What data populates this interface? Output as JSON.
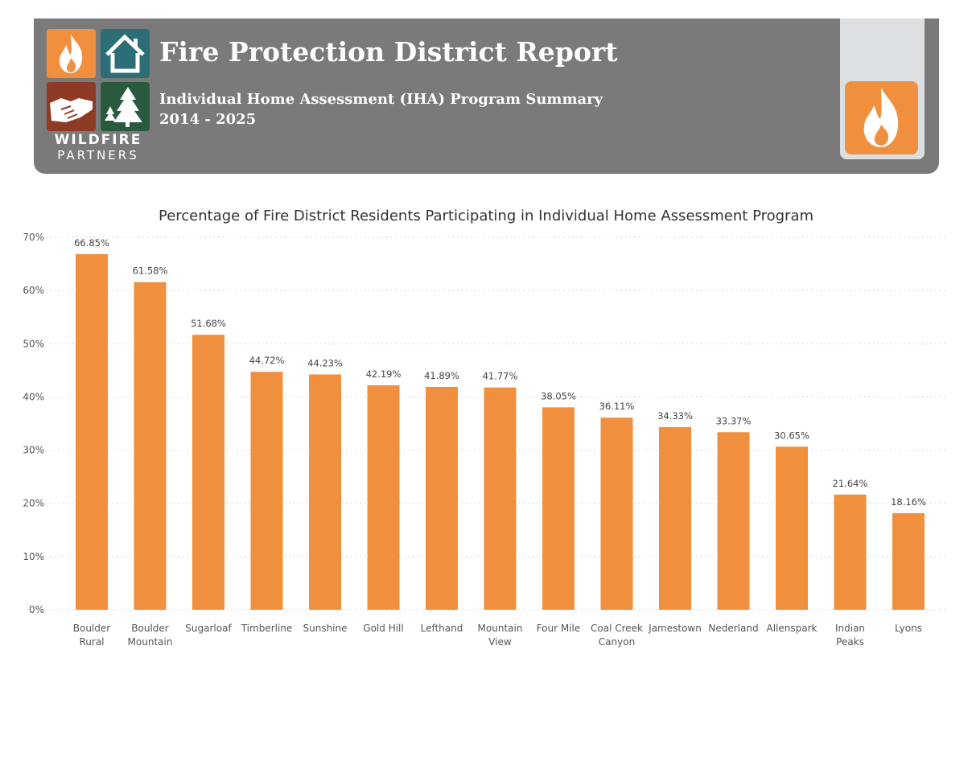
{
  "header": {
    "title": "Fire Protection District Report",
    "subtitle": "Individual Home Assessment (IHA) Program Summary",
    "years": "2014 - 2025",
    "brand_top": "WILDFIRE",
    "brand_bottom": "PARTNERS",
    "logo_icons": [
      "flame-icon",
      "house-icon",
      "handshake-icon",
      "pine-trees-icon"
    ],
    "right_icon": "flame-icon",
    "colors": {
      "header_bg": "#7a7a7a",
      "orange": "#f0903f",
      "teal": "#2b6e75",
      "rust": "#8e3b25",
      "green": "#2a5a3e",
      "panel": "#dcdfe1"
    }
  },
  "chart_data": {
    "type": "bar",
    "title": "Percentage of Fire District Residents Participating in Individual Home Assessment Program",
    "categories": [
      [
        "Boulder",
        "Rural"
      ],
      [
        "Boulder",
        "Mountain"
      ],
      [
        "Sugarloaf"
      ],
      [
        "Timberline"
      ],
      [
        "Sunshine"
      ],
      [
        "Gold Hill"
      ],
      [
        "Lefthand"
      ],
      [
        "Mountain",
        "View"
      ],
      [
        "Four Mile"
      ],
      [
        "Coal Creek",
        "Canyon"
      ],
      [
        "Jamestown"
      ],
      [
        "Nederland"
      ],
      [
        "Allenspark"
      ],
      [
        "Indian",
        "Peaks"
      ],
      [
        "Lyons"
      ]
    ],
    "values": [
      66.85,
      61.58,
      51.68,
      44.72,
      44.23,
      42.19,
      41.89,
      41.77,
      38.05,
      36.11,
      34.33,
      33.37,
      30.65,
      21.64,
      18.16
    ],
    "data_labels": [
      "66.85%",
      "61.58%",
      "51.68%",
      "44.72%",
      "44.23%",
      "42.19%",
      "41.89%",
      "41.77%",
      "38.05%",
      "36.11%",
      "34.33%",
      "33.37%",
      "30.65%",
      "21.64%",
      "18.16%"
    ],
    "yticks": [
      "0%",
      "10%",
      "20%",
      "30%",
      "40%",
      "50%",
      "60%",
      "70%"
    ],
    "ylim": [
      0,
      70
    ],
    "grid": true,
    "bar_color": "#f0903f",
    "xlabel": "",
    "ylabel": ""
  }
}
